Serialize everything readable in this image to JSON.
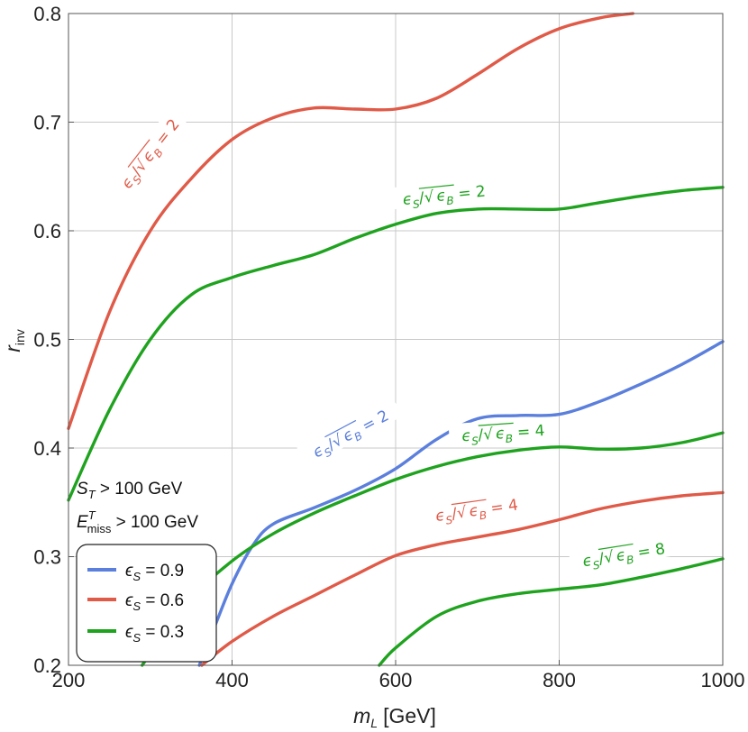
{
  "chart_data": {
    "type": "line",
    "xlabel_var": "m",
    "xlabel_sub": "L",
    "xlabel_unit": "[GeV]",
    "ylabel_var": "r",
    "ylabel_sub": "inv",
    "xlim": [
      200,
      1000
    ],
    "ylim": [
      0.2,
      0.8
    ],
    "x_ticks": [
      200,
      400,
      600,
      800,
      1000
    ],
    "x_tick_labels": [
      "200",
      "400",
      "600",
      "800",
      "1000"
    ],
    "y_ticks": [
      0.2,
      0.3,
      0.4,
      0.5,
      0.6,
      0.7,
      0.8
    ],
    "y_tick_labels": [
      "0.2",
      "0.3",
      "0.4",
      "0.5",
      "0.6",
      "0.7",
      "0.8"
    ],
    "grid": true,
    "annotations": {
      "cut1_var": "S",
      "cut1_sub": "T",
      "cut1_rest": " > 100 GeV",
      "cut2_var": "E",
      "cut2_sup": "T",
      "cut2_sub": "miss",
      "cut2_rest": " > 100 GeV"
    },
    "legend": {
      "position": "bottom-left",
      "entries": [
        {
          "symbol": "ϵ",
          "sub": "S",
          "text": " = 0.9",
          "color": "#5b7fdc"
        },
        {
          "symbol": "ϵ",
          "sub": "S",
          "text": " = 0.6",
          "color": "#e05a48"
        },
        {
          "symbol": "ϵ",
          "sub": "S",
          "text": " = 0.3",
          "color": "#1fa31f"
        }
      ]
    },
    "series": [
      {
        "eps_s": 0.6,
        "level": "2",
        "color": "#e05a48",
        "x": [
          200,
          250,
          300,
          350,
          400,
          450,
          500,
          550,
          600,
          650,
          700,
          750,
          800,
          850,
          890
        ],
        "y": [
          0.418,
          0.525,
          0.6,
          0.648,
          0.684,
          0.704,
          0.713,
          0.712,
          0.712,
          0.722,
          0.744,
          0.768,
          0.786,
          0.796,
          0.8
        ]
      },
      {
        "eps_s": 0.3,
        "level": "2",
        "color": "#1fa31f",
        "x": [
          200,
          250,
          300,
          350,
          400,
          450,
          500,
          550,
          600,
          650,
          700,
          750,
          800,
          850,
          900,
          950,
          1000
        ],
        "y": [
          0.352,
          0.435,
          0.5,
          0.541,
          0.557,
          0.568,
          0.578,
          0.593,
          0.606,
          0.616,
          0.62,
          0.62,
          0.62,
          0.626,
          0.632,
          0.637,
          0.64
        ]
      },
      {
        "eps_s": 0.9,
        "level": "2",
        "color": "#5b7fdc",
        "x": [
          360,
          380,
          400,
          425,
          450,
          500,
          550,
          600,
          650,
          700,
          750,
          800,
          850,
          900,
          950,
          1000
        ],
        "y": [
          0.2,
          0.238,
          0.275,
          0.31,
          0.33,
          0.345,
          0.361,
          0.381,
          0.408,
          0.427,
          0.43,
          0.431,
          0.443,
          0.459,
          0.477,
          0.498
        ]
      },
      {
        "eps_s": 0.3,
        "level": "4",
        "color": "#1fa31f",
        "x": [
          290,
          320,
          350,
          400,
          450,
          500,
          550,
          600,
          650,
          700,
          750,
          800,
          850,
          900,
          950,
          1000
        ],
        "y": [
          0.2,
          0.232,
          0.262,
          0.296,
          0.321,
          0.34,
          0.356,
          0.371,
          0.383,
          0.392,
          0.398,
          0.401,
          0.399,
          0.4,
          0.405,
          0.414
        ]
      },
      {
        "eps_s": 0.6,
        "level": "4",
        "color": "#e05a48",
        "x": [
          363,
          400,
          450,
          500,
          550,
          600,
          650,
          700,
          750,
          800,
          850,
          900,
          950,
          1000
        ],
        "y": [
          0.2,
          0.222,
          0.245,
          0.264,
          0.283,
          0.301,
          0.311,
          0.318,
          0.325,
          0.334,
          0.344,
          0.351,
          0.356,
          0.359
        ]
      },
      {
        "eps_s": 0.3,
        "level": "8",
        "color": "#1fa31f",
        "x": [
          580,
          600,
          650,
          700,
          750,
          800,
          850,
          900,
          950,
          1000
        ],
        "y": [
          0.2,
          0.216,
          0.245,
          0.259,
          0.266,
          0.27,
          0.274,
          0.281,
          0.289,
          0.298
        ]
      }
    ],
    "contour_labels": [
      {
        "level": "2",
        "color": "#e05a48",
        "x": 305,
        "y": 0.668,
        "angle": -52
      },
      {
        "level": "2",
        "color": "#1fa31f",
        "x": 660,
        "y": 0.628,
        "angle": -6
      },
      {
        "level": "2",
        "color": "#5b7fdc",
        "x": 548,
        "y": 0.409,
        "angle": -28
      },
      {
        "level": "4",
        "color": "#1fa31f",
        "x": 732,
        "y": 0.409,
        "angle": -4
      },
      {
        "level": "4",
        "color": "#e05a48",
        "x": 700,
        "y": 0.338,
        "angle": -8
      },
      {
        "level": "8",
        "color": "#1fa31f",
        "x": 880,
        "y": 0.297,
        "angle": -9
      }
    ]
  }
}
